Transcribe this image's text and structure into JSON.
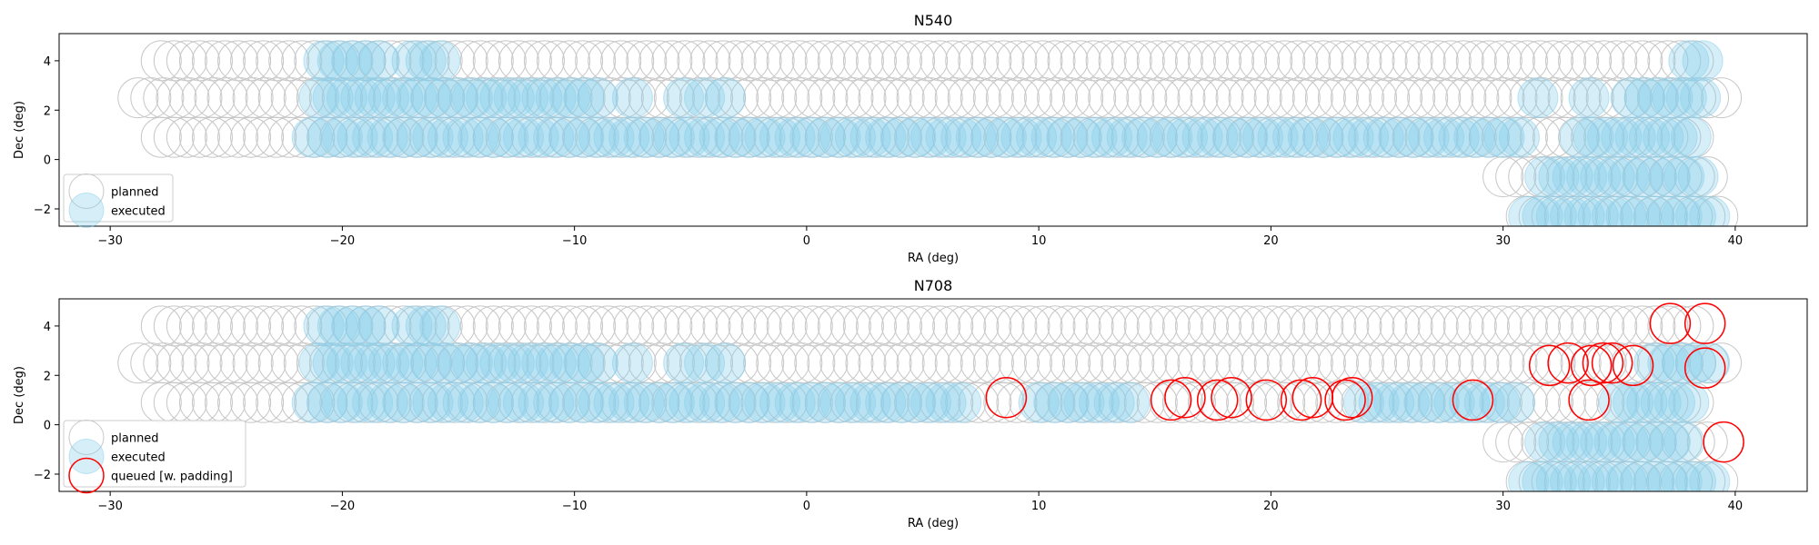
{
  "figure": {
    "colors": {
      "planned_edge": "#c8c8c8",
      "executed_fill": "#87ceeb",
      "executed_edge": "#87ceeb",
      "queued_edge": "#ff0000",
      "axis": "#000000"
    }
  },
  "chart_data": [
    {
      "type": "scatter",
      "title": "N540",
      "xlabel": "RA (deg)",
      "ylabel": "Dec (deg)",
      "xlim": [
        -32.2,
        43.1
      ],
      "ylim": [
        -2.7,
        5.1
      ],
      "xticks": [
        -30,
        -20,
        -10,
        0,
        10,
        20,
        30,
        40
      ],
      "xtick_labels": [
        "−30",
        "−20",
        "−10",
        "0",
        "10",
        "20",
        "30",
        "40"
      ],
      "yticks": [
        -2,
        0,
        2,
        4
      ],
      "ytick_labels": [
        "−2",
        "0",
        "2",
        "4"
      ],
      "legend_position": "lower-left",
      "legend": [
        {
          "key": "planned",
          "label": "planned"
        },
        {
          "key": "executed",
          "label": "executed"
        }
      ],
      "planned_rows": [
        {
          "dec": 4.0,
          "ra_start": -27.8,
          "ra_end": 38.4,
          "step": 0.55
        },
        {
          "dec": 2.5,
          "ra_start": -28.8,
          "ra_end": 39.5,
          "step": 0.55
        },
        {
          "dec": 0.9,
          "ra_start": -27.8,
          "ra_end": 38.4,
          "step": 0.55
        },
        {
          "dec": -0.7,
          "ra_start": 30.0,
          "ra_end": 39.0,
          "step": 0.55
        },
        {
          "dec": -2.3,
          "ra_start": 31.0,
          "ra_end": 39.5,
          "step": 0.55
        }
      ],
      "executed_segments": [
        {
          "dec": 4.0,
          "ra_start": -20.8,
          "ra_end": -18.2,
          "step": 0.6
        },
        {
          "dec": 4.0,
          "ra_start": -17.0,
          "ra_end": -15.8,
          "step": 0.6
        },
        {
          "dec": 4.0,
          "ra_start": 38.0,
          "ra_end": 38.6,
          "step": 0.6
        },
        {
          "dec": 2.5,
          "ra_start": -21.0,
          "ra_end": -9.0,
          "step": 0.6
        },
        {
          "dec": 2.5,
          "ra_start": -7.5,
          "ra_end": -7.5,
          "step": 0.6
        },
        {
          "dec": 2.5,
          "ra_start": -5.3,
          "ra_end": -3.5,
          "step": 0.9
        },
        {
          "dec": 2.5,
          "ra_start": 31.5,
          "ra_end": 31.5,
          "step": 0.6
        },
        {
          "dec": 2.5,
          "ra_start": 33.7,
          "ra_end": 33.7,
          "step": 0.6
        },
        {
          "dec": 2.5,
          "ra_start": 35.5,
          "ra_end": 39.0,
          "step": 0.6
        },
        {
          "dec": 0.9,
          "ra_start": -21.3,
          "ra_end": 30.9,
          "step": 0.65
        },
        {
          "dec": 0.9,
          "ra_start": 33.3,
          "ra_end": 38.5,
          "step": 0.6
        },
        {
          "dec": -0.7,
          "ra_start": 31.8,
          "ra_end": 38.6,
          "step": 0.6
        },
        {
          "dec": -2.3,
          "ra_start": 31.1,
          "ra_end": 39.0,
          "step": 0.6
        }
      ],
      "queued_points": []
    },
    {
      "type": "scatter",
      "title": "N708",
      "xlabel": "RA (deg)",
      "ylabel": "Dec (deg)",
      "xlim": [
        -32.2,
        43.1
      ],
      "ylim": [
        -2.7,
        5.1
      ],
      "xticks": [
        -30,
        -20,
        -10,
        0,
        10,
        20,
        30,
        40
      ],
      "xtick_labels": [
        "−30",
        "−20",
        "−10",
        "0",
        "10",
        "20",
        "30",
        "40"
      ],
      "yticks": [
        -2,
        0,
        2,
        4
      ],
      "ytick_labels": [
        "−2",
        "0",
        "2",
        "4"
      ],
      "legend_position": "lower-left",
      "legend": [
        {
          "key": "planned",
          "label": "planned"
        },
        {
          "key": "executed",
          "label": "executed"
        },
        {
          "key": "queued",
          "label": "queued [w. padding]"
        }
      ],
      "planned_rows": [
        {
          "dec": 4.0,
          "ra_start": -27.8,
          "ra_end": 38.4,
          "step": 0.55
        },
        {
          "dec": 2.5,
          "ra_start": -28.8,
          "ra_end": 39.5,
          "step": 0.55
        },
        {
          "dec": 0.9,
          "ra_start": -27.8,
          "ra_end": 38.4,
          "step": 0.55
        },
        {
          "dec": -0.7,
          "ra_start": 30.0,
          "ra_end": 39.0,
          "step": 0.55
        },
        {
          "dec": -2.3,
          "ra_start": 31.0,
          "ra_end": 39.5,
          "step": 0.55
        }
      ],
      "executed_segments": [
        {
          "dec": 4.0,
          "ra_start": -20.8,
          "ra_end": -18.2,
          "step": 0.6
        },
        {
          "dec": 4.0,
          "ra_start": -17.0,
          "ra_end": -15.8,
          "step": 0.6
        },
        {
          "dec": 2.5,
          "ra_start": -21.0,
          "ra_end": -9.0,
          "step": 0.6
        },
        {
          "dec": 2.5,
          "ra_start": -7.5,
          "ra_end": -7.5,
          "step": 0.6
        },
        {
          "dec": 2.5,
          "ra_start": -5.3,
          "ra_end": -3.5,
          "step": 0.9
        },
        {
          "dec": 2.5,
          "ra_start": 36.5,
          "ra_end": 39.0,
          "step": 0.6
        },
        {
          "dec": 0.9,
          "ra_start": -21.3,
          "ra_end": 7.0,
          "step": 0.65
        },
        {
          "dec": 0.9,
          "ra_start": 10.0,
          "ra_end": 14.0,
          "step": 0.65
        },
        {
          "dec": 0.9,
          "ra_start": 24.0,
          "ra_end": 30.5,
          "step": 0.65
        },
        {
          "dec": 0.9,
          "ra_start": 35.0,
          "ra_end": 38.5,
          "step": 0.6
        },
        {
          "dec": -0.7,
          "ra_start": 31.8,
          "ra_end": 38.0,
          "step": 0.6
        },
        {
          "dec": -2.3,
          "ra_start": 31.1,
          "ra_end": 39.0,
          "step": 0.6
        }
      ],
      "queued_points": [
        {
          "ra": 8.6,
          "dec": 1.1
        },
        {
          "ra": 15.7,
          "dec": 1.0
        },
        {
          "ra": 16.3,
          "dec": 1.1
        },
        {
          "ra": 17.7,
          "dec": 1.0
        },
        {
          "ra": 18.3,
          "dec": 1.1
        },
        {
          "ra": 19.8,
          "dec": 1.0
        },
        {
          "ra": 21.3,
          "dec": 1.0
        },
        {
          "ra": 21.8,
          "dec": 1.1
        },
        {
          "ra": 23.2,
          "dec": 1.0
        },
        {
          "ra": 23.5,
          "dec": 1.1
        },
        {
          "ra": 28.7,
          "dec": 1.0
        },
        {
          "ra": 37.2,
          "dec": 4.1
        },
        {
          "ra": 38.7,
          "dec": 4.1
        },
        {
          "ra": 32.0,
          "dec": 2.4
        },
        {
          "ra": 32.8,
          "dec": 2.5
        },
        {
          "ra": 33.8,
          "dec": 2.4
        },
        {
          "ra": 34.3,
          "dec": 2.5
        },
        {
          "ra": 34.7,
          "dec": 2.5
        },
        {
          "ra": 35.6,
          "dec": 2.4
        },
        {
          "ra": 38.7,
          "dec": 2.3
        },
        {
          "ra": 33.7,
          "dec": 1.0
        },
        {
          "ra": 39.5,
          "dec": -0.7
        }
      ]
    }
  ]
}
